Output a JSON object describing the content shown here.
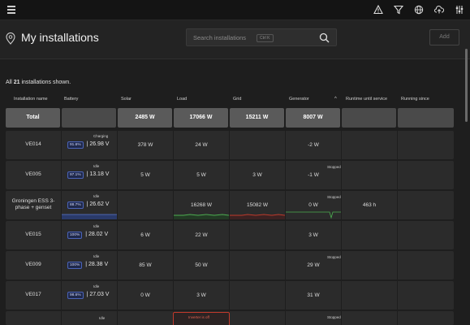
{
  "topbar": {
    "icons": [
      "menu-icon",
      "alert-icon",
      "filter-icon",
      "globe-icon",
      "upload-icon",
      "sliders-icon"
    ]
  },
  "header": {
    "title": "My installations",
    "search_placeholder": "Search installations",
    "search_shortcut": "Ctrl K",
    "add_label": "Add"
  },
  "summary": {
    "prefix": "All",
    "count": "21",
    "suffix": "installations shown."
  },
  "columns": {
    "name": "Installation name",
    "battery": "Battery",
    "solar": "Solar",
    "load": "Load",
    "grid": "Grid",
    "generator": "Generator",
    "runtime": "Runtime until service",
    "running": "Running since"
  },
  "totals": {
    "label": "Total",
    "solar": "2485 W",
    "load": "17066 W",
    "grid": "15211 W",
    "generator": "8007 W"
  },
  "rows": [
    {
      "name": "VE014",
      "battery_status": "Charging",
      "soc": "91.6%",
      "voltage": "26.98 V",
      "solar": "378 W",
      "load": "24 W",
      "grid": "",
      "generator": "-2 W",
      "gen_status": "",
      "runtime": ""
    },
    {
      "name": "VE005",
      "battery_status": "Idle",
      "soc": "97.1%",
      "voltage": "13.18 V",
      "solar": "5 W",
      "load": "5 W",
      "grid": "3 W",
      "generator": "-1 W",
      "gen_status": "Stopped",
      "runtime": ""
    },
    {
      "name": "Groningen ESS 3-phase + genset",
      "battery_status": "Idle",
      "soc": "88.7%",
      "voltage": "26.62 V",
      "solar": "",
      "load": "16268 W",
      "grid": "15082 W",
      "generator": "0 W",
      "gen_status": "Stopped",
      "runtime": "463 h"
    },
    {
      "name": "VE015",
      "battery_status": "Idle",
      "soc": "100%",
      "voltage": "28.02 V",
      "solar": "6 W",
      "load": "22 W",
      "grid": "",
      "generator": "3 W",
      "gen_status": "",
      "runtime": ""
    },
    {
      "name": "VE009",
      "battery_status": "Idle",
      "soc": "100%",
      "voltage": "28.38 V",
      "solar": "85 W",
      "load": "50 W",
      "grid": "",
      "generator": "29 W",
      "gen_status": "Stopped",
      "runtime": ""
    },
    {
      "name": "VE017",
      "battery_status": "Idle",
      "soc": "98.6%",
      "voltage": "27.03 V",
      "solar": "0 W",
      "load": "3 W",
      "grid": "",
      "generator": "31 W",
      "gen_status": "",
      "runtime": ""
    }
  ],
  "partial_row": {
    "battery_status": "Idle",
    "gen_status": "Stopped",
    "alarm": "Inverter is off"
  },
  "colors": {
    "background": "#1e1e1e",
    "row": "#2b2b2b",
    "total": "#5a5a5a",
    "soc_border": "#4a63b8",
    "load_trend": "#4caf50",
    "grid_trend": "#c0392b",
    "alarm": "#c0392b"
  }
}
